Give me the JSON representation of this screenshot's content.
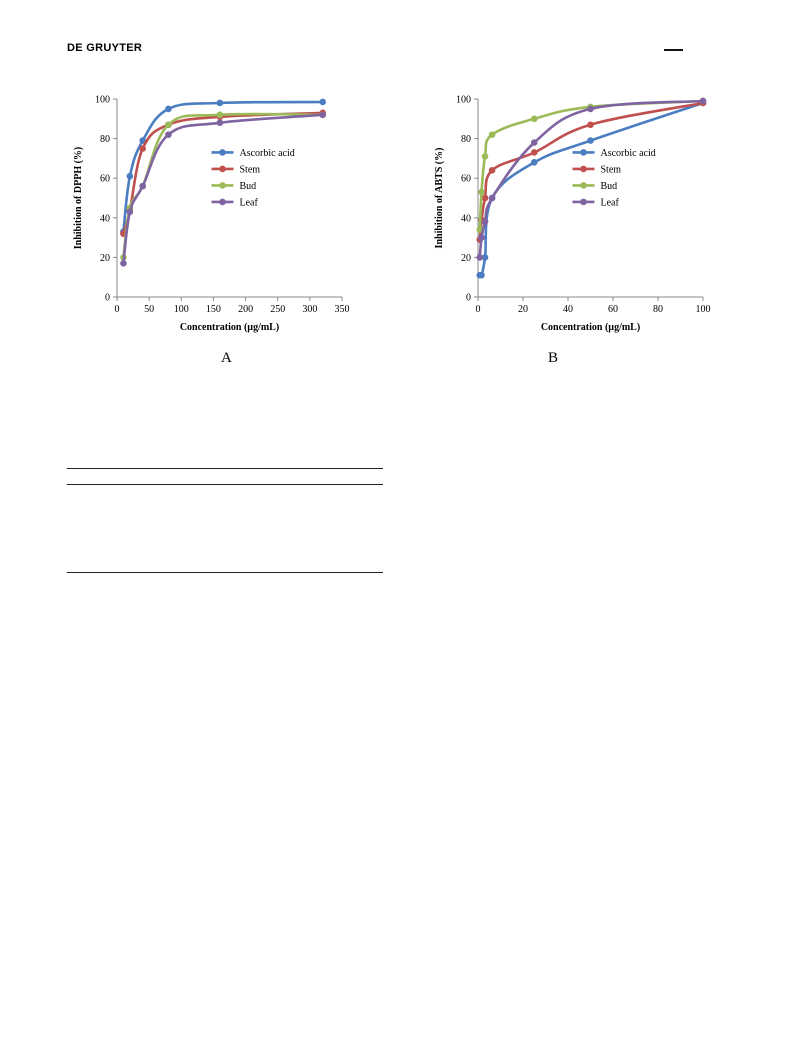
{
  "header": {
    "publisher": "DE GRUYTER"
  },
  "panels": {
    "a": "A",
    "b": "B"
  },
  "colors": {
    "ascorbic": "#4a7ec0",
    "stem": "#c0504d",
    "bud": "#9bbb59",
    "leaf": "#8064a2"
  },
  "chart_data": [
    {
      "type": "line",
      "panel": "A",
      "xlabel": "Concentration  (µg/mL)",
      "ylabel": "Inhibition  of DPPH (%)",
      "xlim": [
        0,
        350
      ],
      "ylim": [
        0,
        100
      ],
      "xticks": [
        0,
        50,
        100,
        150,
        200,
        250,
        300,
        350
      ],
      "yticks": [
        0,
        20,
        40,
        60,
        80,
        100
      ],
      "grid": false,
      "legend": "center-right",
      "series": [
        {
          "name": "Ascorbic acid",
          "color": "#4a7ec0",
          "x": [
            10,
            20,
            40,
            80,
            160,
            320
          ],
          "y": [
            33,
            61,
            79,
            95,
            98,
            98.5
          ]
        },
        {
          "name": "Stem",
          "color": "#c0504d",
          "x": [
            10,
            20,
            40,
            80,
            160,
            320
          ],
          "y": [
            32,
            44,
            75,
            87,
            91,
            93
          ]
        },
        {
          "name": "Bud",
          "color": "#9bbb59",
          "x": [
            10,
            20,
            40,
            80,
            160,
            320
          ],
          "y": [
            20,
            45,
            56,
            87,
            92,
            92
          ]
        },
        {
          "name": "Leaf",
          "color": "#8064a2",
          "x": [
            10,
            20,
            40,
            80,
            160,
            320
          ],
          "y": [
            17,
            43,
            56,
            82,
            88,
            92
          ]
        }
      ]
    },
    {
      "type": "line",
      "panel": "B",
      "xlabel": "Concentration  (µg/mL)",
      "ylabel": "Inhibition of ABTS (%)",
      "xlim": [
        0,
        100
      ],
      "ylim": [
        0,
        100
      ],
      "xticks": [
        0,
        20,
        40,
        60,
        80,
        100
      ],
      "yticks": [
        0,
        20,
        40,
        60,
        80,
        100
      ],
      "grid": false,
      "legend": "center-right",
      "series": [
        {
          "name": "Ascorbic acid",
          "color": "#4a7ec0",
          "x": [
            0.78,
            1.56,
            3.125,
            6.25,
            25,
            50,
            100
          ],
          "y": [
            11,
            11,
            20,
            50,
            68,
            79,
            98
          ]
        },
        {
          "name": "Stem",
          "color": "#c0504d",
          "x": [
            0.78,
            1.56,
            3.125,
            6.25,
            25,
            50,
            100
          ],
          "y": [
            29,
            39,
            50,
            64,
            73,
            87,
            98
          ]
        },
        {
          "name": "Bud",
          "color": "#9bbb59",
          "x": [
            0.78,
            1.56,
            3.125,
            6.25,
            25,
            50,
            100
          ],
          "y": [
            34,
            53,
            71,
            82,
            90,
            96,
            99
          ]
        },
        {
          "name": "Leaf",
          "color": "#8064a2",
          "x": [
            0.78,
            1.56,
            3.125,
            6.25,
            25,
            50,
            100
          ],
          "y": [
            20,
            30,
            38,
            50,
            78,
            95,
            99
          ]
        }
      ]
    }
  ]
}
